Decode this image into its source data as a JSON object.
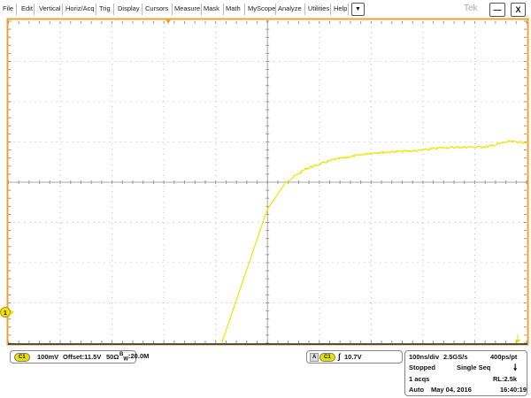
{
  "menu": {
    "items": [
      "File",
      "Edit",
      "Vertical",
      "Horiz/Acq",
      "Trig",
      "Display",
      "Cursors",
      "Measure",
      "Mask",
      "Math",
      "MyScope",
      "Analyze",
      "Utilities",
      "Help"
    ],
    "dropdown_icon": "triangle-down",
    "logo": "Tek",
    "minimize_label": "—",
    "close_label": "X"
  },
  "colors": {
    "trace": "#f0e400",
    "frame": "#f0a030",
    "grid": "#999999",
    "chip": "#e6e000"
  },
  "channel": {
    "label": "C1",
    "scale": "100mV",
    "offset": "Offset:11.5V",
    "impedance": "50Ω",
    "bandwidth_prefix": "B",
    "bandwidth_sub": "W",
    "bandwidth": ":20.0M",
    "marker": "1"
  },
  "trigger": {
    "source_prefix": "A",
    "source": "C1",
    "slope": "rising",
    "level": "10.7V"
  },
  "acquisition": {
    "timebase": "100ns/div",
    "sample_rate": "2.5GS/s",
    "resolution": "400ps/pt",
    "state": "Stopped",
    "mode": "Single Seq",
    "acqs": "1 acqs",
    "record_length": "RL:2.5k",
    "trigger_mode": "Auto",
    "date": "May 04, 2016",
    "time": "16:40:19"
  },
  "chart_data": {
    "type": "line",
    "xlabel": "",
    "ylabel": "",
    "x_unit": "ns",
    "y_unit": "V",
    "xlim": [
      -309,
      692
    ],
    "ylim": [
      11.423,
      12.223
    ],
    "grid": true,
    "divisions": [
      10,
      8
    ],
    "series": [
      {
        "x": [
          103,
          191,
          227,
          265,
          316,
          393,
          487,
          530,
          615,
          658,
          692
        ],
        "y": [
          11.423,
          11.755,
          11.823,
          11.856,
          11.878,
          11.896,
          11.902,
          11.909,
          11.911,
          11.924,
          11.922
        ]
      }
    ]
  }
}
